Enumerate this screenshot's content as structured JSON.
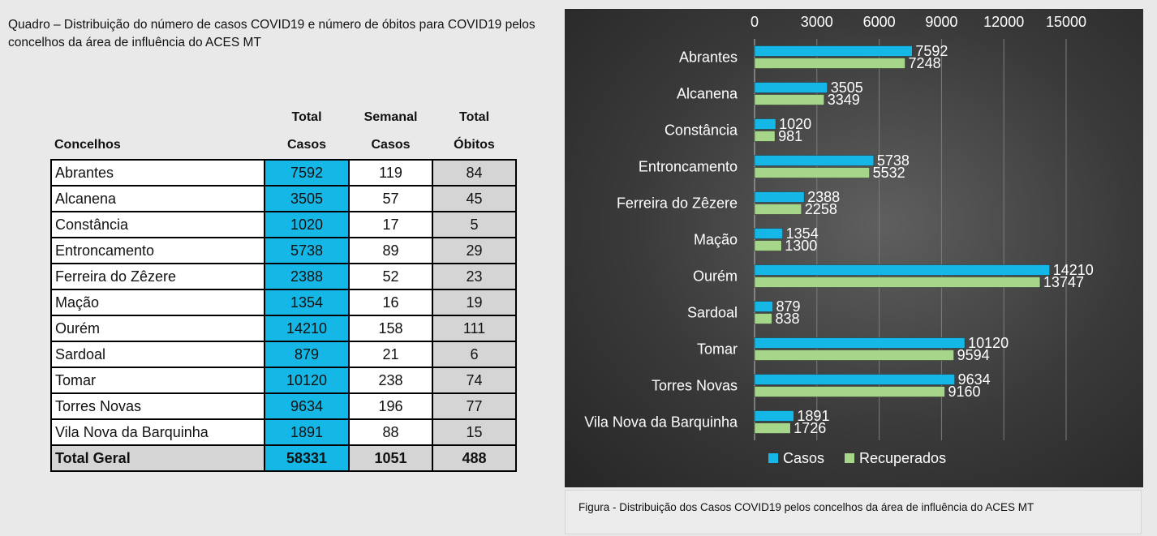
{
  "quadro_caption": "Quadro – Distribuição do número de casos COVID19 e número de óbitos para COVID19 pelos concelhos da área de influência do ACES MT",
  "table": {
    "headers": {
      "concelhos": "Concelhos",
      "total_casos": [
        "Total",
        "Casos"
      ],
      "semanal_casos": [
        "Semanal",
        "Casos"
      ],
      "total_obitos": [
        "Total",
        "Óbitos"
      ]
    },
    "rows": [
      {
        "concelho": "Abrantes",
        "total_casos": "7592",
        "semanal_casos": "119",
        "total_obitos": "84"
      },
      {
        "concelho": "Alcanena",
        "total_casos": "3505",
        "semanal_casos": "57",
        "total_obitos": "45"
      },
      {
        "concelho": "Constância",
        "total_casos": "1020",
        "semanal_casos": "17",
        "total_obitos": "5"
      },
      {
        "concelho": "Entroncamento",
        "total_casos": "5738",
        "semanal_casos": "89",
        "total_obitos": "29"
      },
      {
        "concelho": "Ferreira do Zêzere",
        "total_casos": "2388",
        "semanal_casos": "52",
        "total_obitos": "23"
      },
      {
        "concelho": "Mação",
        "total_casos": "1354",
        "semanal_casos": "16",
        "total_obitos": "19"
      },
      {
        "concelho": "Ourém",
        "total_casos": "14210",
        "semanal_casos": "158",
        "total_obitos": "111"
      },
      {
        "concelho": "Sardoal",
        "total_casos": "879",
        "semanal_casos": "21",
        "total_obitos": "6"
      },
      {
        "concelho": "Tomar",
        "total_casos": "10120",
        "semanal_casos": "238",
        "total_obitos": "74"
      },
      {
        "concelho": "Torres Novas",
        "total_casos": "9634",
        "semanal_casos": "196",
        "total_obitos": "77"
      },
      {
        "concelho": "Vila Nova da Barquinha",
        "total_casos": "1891",
        "semanal_casos": "88",
        "total_obitos": "15"
      }
    ],
    "total": {
      "concelho": "Total Geral",
      "total_casos": "58331",
      "semanal_casos": "1051",
      "total_obitos": "488"
    }
  },
  "chart_data": {
    "type": "bar",
    "orientation": "horizontal",
    "title": "",
    "xlabel": "",
    "ylabel": "",
    "xlim": [
      0,
      15000
    ],
    "xticks": [
      0,
      3000,
      6000,
      9000,
      12000,
      15000
    ],
    "x_axis_position": "top",
    "grid": true,
    "legend_position": "bottom",
    "categories": [
      "Abrantes",
      "Alcanena",
      "Constância",
      "Entroncamento",
      "Ferreira do Zêzere",
      "Mação",
      "Ourém",
      "Sardoal",
      "Tomar",
      "Torres Novas",
      "Vila Nova da Barquinha"
    ],
    "series": [
      {
        "name": "Casos",
        "color": "#15b7e6",
        "values": [
          7592,
          3505,
          1020,
          5738,
          2388,
          1354,
          14210,
          879,
          10120,
          9634,
          1891
        ]
      },
      {
        "name": "Recuperados",
        "color": "#a6d68a",
        "values": [
          7248,
          3349,
          981,
          5532,
          2258,
          1300,
          13747,
          838,
          9594,
          9160,
          1726
        ]
      }
    ]
  },
  "figure_caption": "Figura -  Distribuição dos Casos COVID19 pelos concelhos da área de influência do ACES MT"
}
